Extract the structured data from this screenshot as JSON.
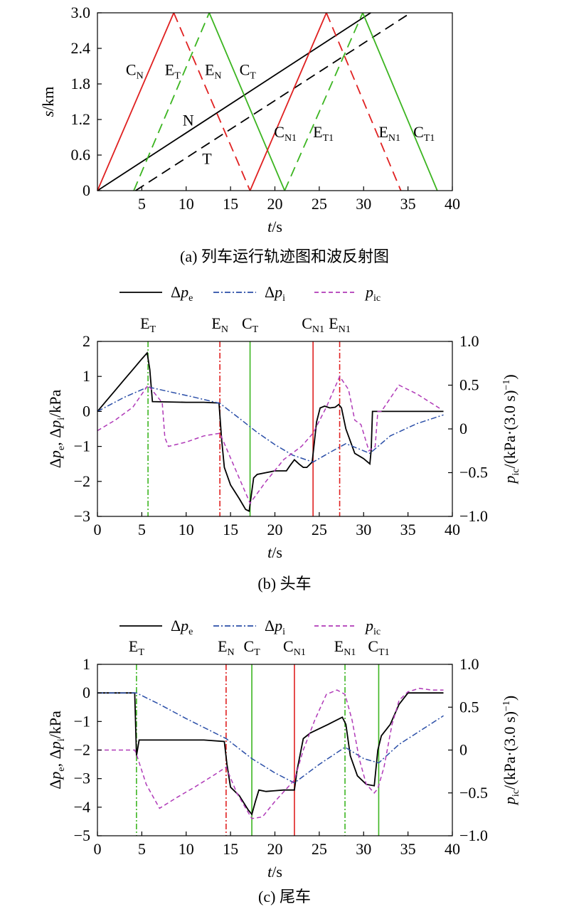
{
  "chart_data": [
    {
      "id": "a",
      "type": "line",
      "caption": "(a) 列车运行轨迹图和波反射图",
      "xlabel": "t/s",
      "ylabel": "s/km",
      "xlim": [
        0,
        40
      ],
      "ylim": [
        0,
        3.0
      ],
      "xticks": [
        5,
        10,
        15,
        20,
        25,
        30,
        35,
        40
      ],
      "yticks": [
        0,
        0.6,
        1.2,
        1.8,
        2.4,
        3.0
      ],
      "xticklabels": [
        "5",
        "10",
        "15",
        "20",
        "25",
        "30",
        "35",
        "40"
      ],
      "yticklabels": [
        "0",
        "0.6",
        "1.2",
        "1.8",
        "2.4",
        "3.0"
      ],
      "grid": false,
      "colors": {
        "red": "#e02020",
        "green": "#3cb521",
        "black": "#000000"
      },
      "series": [
        {
          "key": "N",
          "color": "black",
          "dash": "solid",
          "x": [
            0,
            30.8
          ],
          "y": [
            0,
            3.0
          ]
        },
        {
          "key": "T",
          "color": "black",
          "dash": "dashed",
          "x": [
            4.3,
            35.3
          ],
          "y": [
            0,
            3.0
          ]
        },
        {
          "key": "CN",
          "color": "red",
          "dash": "solid",
          "x": [
            0,
            8.6
          ],
          "y": [
            0,
            3.0
          ]
        },
        {
          "key": "EN",
          "color": "red",
          "dash": "dashed",
          "x": [
            8.6,
            17.2
          ],
          "y": [
            3.0,
            0
          ]
        },
        {
          "key": "ET",
          "color": "green",
          "dash": "dashed",
          "x": [
            4.1,
            12.6
          ],
          "y": [
            0,
            3.0
          ]
        },
        {
          "key": "CT",
          "color": "green",
          "dash": "solid",
          "x": [
            12.6,
            21.1
          ],
          "y": [
            3.0,
            0
          ]
        },
        {
          "key": "CN1",
          "color": "red",
          "dash": "solid",
          "x": [
            17.2,
            25.8
          ],
          "y": [
            0,
            3.0
          ]
        },
        {
          "key": "EN1",
          "color": "red",
          "dash": "dashed",
          "x": [
            25.8,
            34.2
          ],
          "y": [
            3.0,
            0
          ]
        },
        {
          "key": "ET1",
          "color": "green",
          "dash": "dashed",
          "x": [
            21.1,
            29.9
          ],
          "y": [
            0,
            3.0
          ]
        },
        {
          "key": "CT1",
          "color": "green",
          "dash": "solid",
          "x": [
            29.9,
            38.3
          ],
          "y": [
            3.0,
            0
          ]
        }
      ],
      "annotations": [
        {
          "main": "C",
          "sub": "N",
          "x": 3.2,
          "y": 1.95
        },
        {
          "main": "E",
          "sub": "T",
          "x": 7.6,
          "y": 1.95
        },
        {
          "main": "E",
          "sub": "N",
          "x": 12.1,
          "y": 1.95
        },
        {
          "main": "C",
          "sub": "T",
          "x": 16.0,
          "y": 1.95
        },
        {
          "main": "N",
          "sub": "",
          "x": 9.6,
          "y": 1.1
        },
        {
          "main": "T",
          "sub": "",
          "x": 11.8,
          "y": 0.45
        },
        {
          "main": "C",
          "sub": "N1",
          "x": 19.9,
          "y": 0.9
        },
        {
          "main": "E",
          "sub": "T1",
          "x": 24.3,
          "y": 0.9
        },
        {
          "main": "E",
          "sub": "N1",
          "x": 31.7,
          "y": 0.9
        },
        {
          "main": "C",
          "sub": "T1",
          "x": 35.6,
          "y": 0.9
        }
      ]
    },
    {
      "id": "b",
      "type": "line",
      "caption": "(b) 头车",
      "xlabel": "t/s",
      "ylabel": "Δpe, Δpi/kPa",
      "y2label": "pic/(kPa·(3.0 s)⁻¹)",
      "xlim": [
        0,
        40
      ],
      "ylim": [
        -3,
        2
      ],
      "y2lim": [
        -1.0,
        1.0
      ],
      "xticks": [
        0,
        5,
        10,
        15,
        20,
        25,
        30,
        35,
        40
      ],
      "yticks": [
        -3,
        -2,
        -1,
        0,
        1,
        2
      ],
      "y2ticks": [
        -1.0,
        -0.5,
        0,
        0.5,
        1.0
      ],
      "xticklabels": [
        "0",
        "5",
        "10",
        "15",
        "20",
        "25",
        "30",
        "35",
        "40"
      ],
      "yticklabels": [
        "−3",
        "−2",
        "−1",
        "0",
        "1",
        "2"
      ],
      "y2ticklabels": [
        "−1.0",
        "−0.5",
        "0",
        "0.5",
        "1.0"
      ],
      "grid": false,
      "legend": {
        "position": "top",
        "items": [
          {
            "sym": "Δ",
            "main": "p",
            "sub": "e",
            "color": "#000000",
            "dash": "solid"
          },
          {
            "sym": "Δ",
            "main": "p",
            "sub": "i",
            "color": "#2b4fa8",
            "dash": "dashdot"
          },
          {
            "sym": "",
            "main": "p",
            "sub": "ic",
            "color": "#b03ab8",
            "dash": "dashed"
          }
        ]
      },
      "markers": [
        {
          "main": "E",
          "sub": "T",
          "x": 5.7,
          "color": "#3cb521",
          "dash": "dashdot"
        },
        {
          "main": "E",
          "sub": "N",
          "x": 13.8,
          "color": "#e02020",
          "dash": "dashdot"
        },
        {
          "main": "C",
          "sub": "T",
          "x": 17.2,
          "color": "#3cb521",
          "dash": "solid"
        },
        {
          "main": "C",
          "sub": "N1",
          "x": 24.3,
          "color": "#e02020",
          "dash": "solid"
        },
        {
          "main": "E",
          "sub": "N1",
          "x": 27.3,
          "color": "#e02020",
          "dash": "dashdot"
        }
      ],
      "series": [
        {
          "name": "Δpe",
          "axis": "left",
          "color": "#000000",
          "dash": "solid",
          "x": [
            0,
            1,
            2,
            3,
            4,
            5,
            5.6,
            5.9,
            6.2,
            8,
            10,
            12,
            13.7,
            14.0,
            14.3,
            15,
            16,
            16.7,
            17.1,
            17.6,
            18,
            19,
            20,
            21.3,
            21.7,
            22.2,
            22.7,
            23.2,
            23.6,
            24.2,
            24.7,
            25.1,
            25.6,
            26.2,
            26.8,
            27.2,
            27.5,
            28.0,
            29,
            30,
            30.7,
            30.85,
            31.0,
            32,
            35,
            39
          ],
          "y": [
            0,
            0.3,
            0.6,
            0.9,
            1.2,
            1.5,
            1.67,
            1.2,
            0.28,
            0.27,
            0.26,
            0.26,
            0.24,
            -0.8,
            -1.6,
            -2.1,
            -2.5,
            -2.8,
            -2.85,
            -1.9,
            -1.8,
            -1.75,
            -1.7,
            -1.7,
            -1.55,
            -1.38,
            -1.5,
            -1.6,
            -1.6,
            -1.45,
            -0.3,
            0.1,
            0.15,
            0.1,
            0.12,
            0.2,
            0.1,
            -0.5,
            -1.2,
            -1.35,
            -1.5,
            -1.1,
            0,
            0,
            0,
            0
          ]
        },
        {
          "name": "Δpi",
          "axis": "left",
          "color": "#2b4fa8",
          "dash": "dashdot",
          "x": [
            0,
            3,
            5.7,
            8,
            11,
            13.8,
            16,
            18,
            20,
            22,
            24.3,
            26,
            28,
            30.7,
            33,
            36,
            39
          ],
          "y": [
            0,
            0.4,
            0.7,
            0.57,
            0.4,
            0.23,
            -0.2,
            -0.6,
            -0.95,
            -1.25,
            -1.45,
            -1.2,
            -0.92,
            -1.2,
            -0.7,
            -0.35,
            -0.1
          ]
        },
        {
          "name": "pic",
          "axis": "right",
          "color": "#b03ab8",
          "dash": "dashed",
          "x": [
            0,
            2,
            4,
            5.7,
            7.3,
            7.6,
            8,
            10,
            12,
            13.8,
            15.5,
            17.2,
            19,
            21,
            23,
            24.3,
            25.8,
            27.3,
            28.3,
            29,
            29.7,
            30.6,
            31.3,
            31.6,
            32,
            34,
            36,
            38.8
          ],
          "y": [
            -0.02,
            0.1,
            0.25,
            0.5,
            0.3,
            -0.1,
            -0.2,
            -0.15,
            -0.08,
            -0.05,
            -0.45,
            -0.85,
            -0.6,
            -0.35,
            -0.2,
            -0.05,
            0.25,
            0.6,
            0.45,
            0.1,
            0.05,
            -0.25,
            -0.2,
            0.2,
            0.2,
            0.5,
            0.4,
            0.22
          ]
        }
      ]
    },
    {
      "id": "c",
      "type": "line",
      "caption": "(c) 尾车",
      "xlabel": "t/s",
      "ylabel": "Δpe, Δpi/kPa",
      "y2label": "pic/(kPa·(3.0 s)⁻¹)",
      "xlim": [
        0,
        40
      ],
      "ylim": [
        -5,
        1
      ],
      "y2lim": [
        -1.0,
        1.0
      ],
      "xticks": [
        0,
        5,
        10,
        15,
        20,
        25,
        30,
        35,
        40
      ],
      "yticks": [
        -5,
        -4,
        -3,
        -2,
        -1,
        0,
        1
      ],
      "y2ticks": [
        -1.0,
        -0.5,
        0,
        0.5,
        1.0
      ],
      "xticklabels": [
        "0",
        "5",
        "10",
        "15",
        "20",
        "25",
        "30",
        "35",
        "40"
      ],
      "yticklabels": [
        "−5",
        "−4",
        "−3",
        "−2",
        "−1",
        "0",
        "1"
      ],
      "y2ticklabels": [
        "−1.0",
        "−0.5",
        "0",
        "0.5",
        "1.0"
      ],
      "grid": false,
      "legend": {
        "position": "top",
        "items": [
          {
            "sym": "Δ",
            "main": "p",
            "sub": "e",
            "color": "#000000",
            "dash": "solid"
          },
          {
            "sym": "Δ",
            "main": "p",
            "sub": "i",
            "color": "#2b4fa8",
            "dash": "dashdot"
          },
          {
            "sym": "",
            "main": "p",
            "sub": "ic",
            "color": "#b03ab8",
            "dash": "dashed"
          }
        ]
      },
      "markers": [
        {
          "main": "E",
          "sub": "T",
          "x": 4.4,
          "color": "#3cb521",
          "dash": "dashdot"
        },
        {
          "main": "E",
          "sub": "N",
          "x": 14.5,
          "color": "#e02020",
          "dash": "dashdot"
        },
        {
          "main": "C",
          "sub": "T",
          "x": 17.4,
          "color": "#3cb521",
          "dash": "solid"
        },
        {
          "main": "C",
          "sub": "N1",
          "x": 22.2,
          "color": "#e02020",
          "dash": "solid"
        },
        {
          "main": "E",
          "sub": "N1",
          "x": 27.9,
          "color": "#3cb521",
          "dash": "dashdot"
        },
        {
          "main": "C",
          "sub": "T1",
          "x": 31.7,
          "color": "#3cb521",
          "dash": "solid"
        }
      ],
      "series": [
        {
          "name": "Δpe",
          "axis": "left",
          "color": "#000000",
          "dash": "solid",
          "x": [
            0,
            4.2,
            4.4,
            4.7,
            8,
            12,
            14.3,
            14.6,
            15.0,
            16,
            17,
            17.4,
            17.8,
            18.2,
            19,
            21,
            22.2,
            22.5,
            23.2,
            24,
            26,
            27.6,
            28.0,
            28.5,
            29.3,
            30.3,
            31.2,
            31.6,
            32.0,
            33,
            34,
            35,
            39
          ],
          "y": [
            0,
            0,
            -2.2,
            -1.65,
            -1.65,
            -1.65,
            -1.7,
            -2.5,
            -3.3,
            -3.6,
            -4.1,
            -4.25,
            -3.8,
            -3.4,
            -3.45,
            -3.4,
            -3.4,
            -2.7,
            -1.6,
            -1.4,
            -1.1,
            -0.85,
            -1.1,
            -2.2,
            -2.9,
            -3.2,
            -3.25,
            -2.0,
            -1.5,
            -1.1,
            -0.4,
            0,
            0
          ]
        },
        {
          "name": "Δpi",
          "axis": "left",
          "color": "#2b4fa8",
          "dash": "dashdot",
          "x": [
            0,
            4.4,
            7,
            10,
            14.5,
            17.4,
            20,
            22.2,
            25,
            27.9,
            30,
            31.7,
            34,
            37,
            39
          ],
          "y": [
            0,
            0,
            -0.4,
            -0.9,
            -1.6,
            -2.3,
            -2.8,
            -3.15,
            -2.5,
            -1.9,
            -2.3,
            -2.45,
            -1.8,
            -1.2,
            -0.8
          ]
        },
        {
          "name": "pic",
          "axis": "right",
          "color": "#b03ab8",
          "dash": "dashed",
          "x": [
            0,
            4.2,
            4.4,
            5.5,
            7.0,
            9,
            11,
            13,
            14.5,
            15.7,
            17.4,
            18.6,
            20,
            22.2,
            23.2,
            24.5,
            25.8,
            27.0,
            27.9,
            28.7,
            29.5,
            30.3,
            31.2,
            31.6,
            32.3,
            33.2,
            34,
            35,
            36.3,
            37.6,
            39
          ],
          "y": [
            0,
            0,
            -0.05,
            -0.4,
            -0.68,
            -0.55,
            -0.43,
            -0.3,
            -0.2,
            -0.5,
            -0.8,
            -0.78,
            -0.6,
            -0.35,
            0,
            0.35,
            0.65,
            0.7,
            0.65,
            0.35,
            -0.1,
            -0.4,
            -0.5,
            -0.45,
            -0.2,
            0.3,
            0.58,
            0.68,
            0.72,
            0.7,
            0.7
          ]
        }
      ]
    }
  ]
}
